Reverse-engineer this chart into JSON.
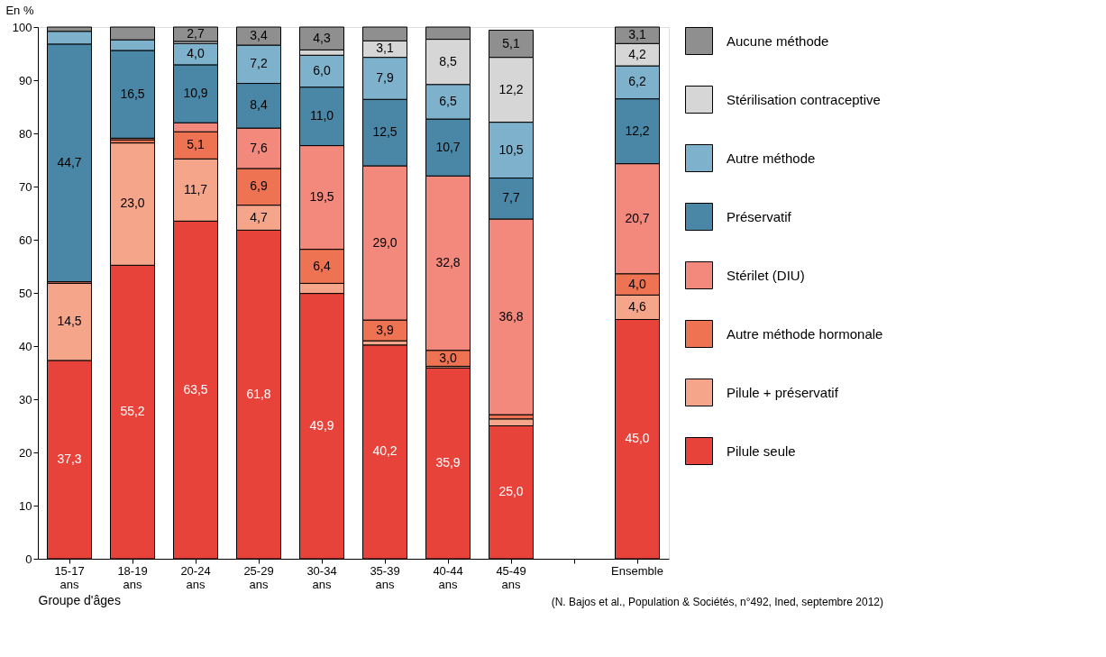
{
  "chart_data": {
    "type": "bar",
    "stacked": true,
    "ylabel": "En %",
    "xlabel": "Groupe d'âges",
    "categories": [
      "15-17 ans",
      "18-19 ans",
      "20-24 ans",
      "25-29 ans",
      "30-34 ans",
      "35-39 ans",
      "40-44 ans",
      "45-49 ans",
      null,
      "Ensemble"
    ],
    "series": [
      {
        "name": "Pilule seule",
        "color": "#e8433a",
        "values": [
          37.3,
          55.2,
          63.5,
          61.8,
          49.9,
          40.2,
          35.9,
          25.0,
          null,
          45.0
        ],
        "value_labels": [
          "37,3",
          "55,2",
          "63,5",
          "61,8",
          "49,9",
          "40,2",
          "35,9",
          "25,0",
          null,
          "45,0"
        ]
      },
      {
        "name": "Pilule + préservatif",
        "color": "#f4a58a",
        "values": [
          14.5,
          23.0,
          11.7,
          4.7,
          1.9,
          0.8,
          0.3,
          1.3,
          null,
          4.6
        ],
        "value_labels": [
          "14,5",
          "23,0",
          "11,7",
          "4,7",
          null,
          null,
          null,
          null,
          null,
          "4,6"
        ]
      },
      {
        "name": "Autre méthode hormonale",
        "color": "#ee7352",
        "values": [
          0.3,
          0.6,
          5.1,
          6.9,
          6.4,
          3.9,
          3.0,
          0.8,
          null,
          4.0
        ],
        "value_labels": [
          null,
          null,
          "5,1",
          "6,9",
          "6,4",
          "3,9",
          "3,0",
          null,
          null,
          "4,0"
        ]
      },
      {
        "name": "Stérilet (DIU)",
        "color": "#f2897c",
        "values": [
          null,
          0.3,
          1.7,
          7.6,
          19.5,
          29.0,
          32.8,
          36.8,
          null,
          20.7
        ],
        "value_labels": [
          null,
          null,
          null,
          "7,6",
          "19,5",
          "29,0",
          "32,8",
          "36,8",
          null,
          "20,7"
        ]
      },
      {
        "name": "Préservatif",
        "color": "#4a87a6",
        "values": [
          44.7,
          16.5,
          10.9,
          8.4,
          11.0,
          12.5,
          10.7,
          7.7,
          null,
          12.2
        ],
        "value_labels": [
          "44,7",
          "16,5",
          "10,9",
          "8,4",
          "11,0",
          "12,5",
          "10,7",
          "7,7",
          null,
          "12,2"
        ]
      },
      {
        "name": "Autre méthode",
        "color": "#7eb1cb",
        "values": [
          2.4,
          2.0,
          4.0,
          7.2,
          6.0,
          7.9,
          6.5,
          10.5,
          null,
          6.2
        ],
        "value_labels": [
          null,
          null,
          "4,0",
          "7,2",
          "6,0",
          "7,9",
          "6,5",
          "10,5",
          null,
          "6,2"
        ]
      },
      {
        "name": "Stérilisation contraceptive",
        "color": "#d6d6d6",
        "values": [
          null,
          null,
          0.4,
          null,
          1.0,
          3.1,
          8.5,
          12.2,
          null,
          4.2
        ],
        "value_labels": [
          null,
          null,
          null,
          null,
          null,
          "3,1",
          "8,5",
          "12,2",
          null,
          "4,2"
        ]
      },
      {
        "name": "Aucune méthode",
        "color": "#8f8f8f",
        "values": [
          0.8,
          2.4,
          2.7,
          3.4,
          4.3,
          2.6,
          2.3,
          5.1,
          null,
          3.1
        ],
        "value_labels": [
          null,
          null,
          "2,7",
          "3,4",
          "4,3",
          null,
          null,
          "5,1",
          null,
          "3,1"
        ]
      }
    ],
    "ylim": [
      0,
      100
    ],
    "yticks": [
      0,
      10,
      20,
      30,
      40,
      50,
      60,
      70,
      80,
      90,
      100
    ],
    "grid": false,
    "legend": "right",
    "annotations": [
      "(N. Bajos et al., Population & Sociétés, n°492, Ined, septembre 2012)"
    ]
  }
}
